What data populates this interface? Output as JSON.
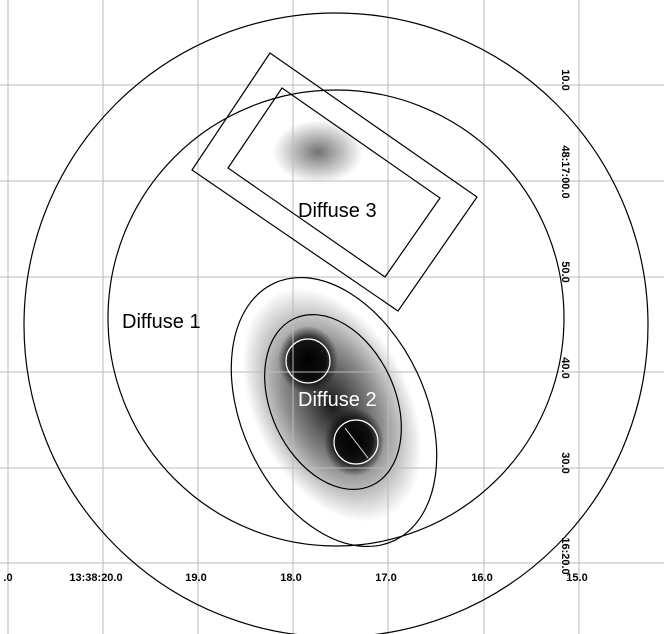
{
  "regions": [
    "Diffuse 1",
    "Diffuse 2",
    "Diffuse 3"
  ],
  "ra_labels": [
    ".0",
    "13:38:20.0",
    "19.0",
    "18.0",
    "17.0",
    "16.0",
    "15.0"
  ],
  "dec_labels": [
    "10.0",
    "48:17:00.0",
    "50.0",
    "40.0",
    "30.0",
    "16:20.0"
  ]
}
